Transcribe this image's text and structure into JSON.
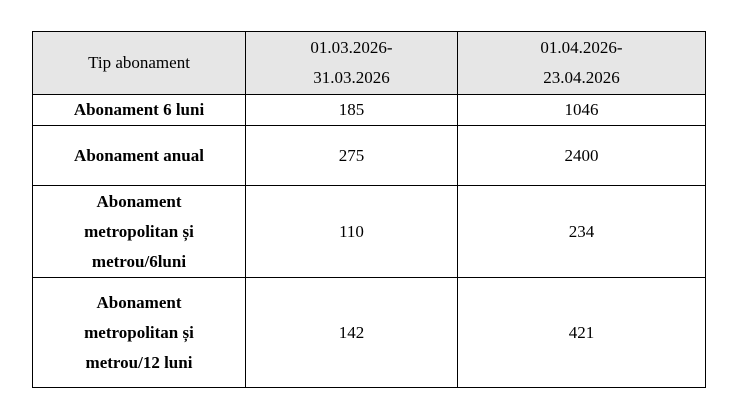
{
  "table": {
    "headers": [
      "Tip abonament",
      "01.03.2026-\n31.03.2026",
      "01.04.2026-\n23.04.2026"
    ],
    "header_lines": [
      [
        "Tip abonament"
      ],
      [
        "01.03.2026-",
        "31.03.2026"
      ],
      [
        "01.04.2026-",
        "23.04.2026"
      ]
    ],
    "rows": [
      {
        "name_lines": [
          "Abonament 6 luni"
        ],
        "values": [
          "185",
          "1046"
        ]
      },
      {
        "name_lines": [
          "Abonament anual"
        ],
        "values": [
          "275",
          "2400"
        ]
      },
      {
        "name_lines": [
          "Abonament",
          "metropolitan și",
          "metrou/6luni"
        ],
        "values": [
          "110",
          "234"
        ]
      },
      {
        "name_lines": [
          "Abonament",
          "metropolitan și",
          "metrou/12 luni"
        ],
        "values": [
          "142",
          "421"
        ]
      }
    ],
    "header_bg": "#e6e6e6"
  }
}
